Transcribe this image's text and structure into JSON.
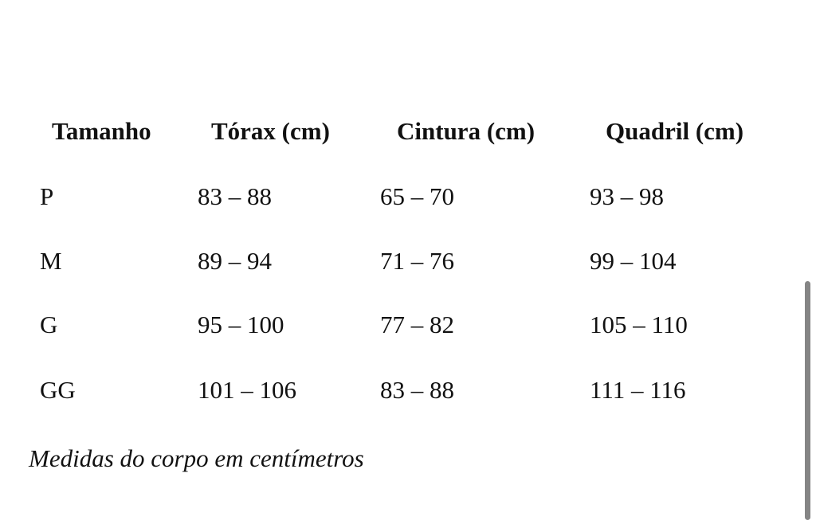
{
  "table": {
    "headers": [
      "Tamanho",
      "Tórax (cm)",
      "Cintura (cm)",
      "Quadril (cm)"
    ],
    "rows": [
      [
        "P",
        "83 – 88",
        "65 – 70",
        "93 – 98"
      ],
      [
        "M",
        "89 – 94",
        "71 – 76",
        "99 – 104"
      ],
      [
        "G",
        "95 – 100",
        "77 – 82",
        "105 – 110"
      ],
      [
        "GG",
        "101 – 106",
        "83 – 88",
        "111 – 116"
      ]
    ]
  },
  "caption": "Medidas do corpo em centímetros"
}
